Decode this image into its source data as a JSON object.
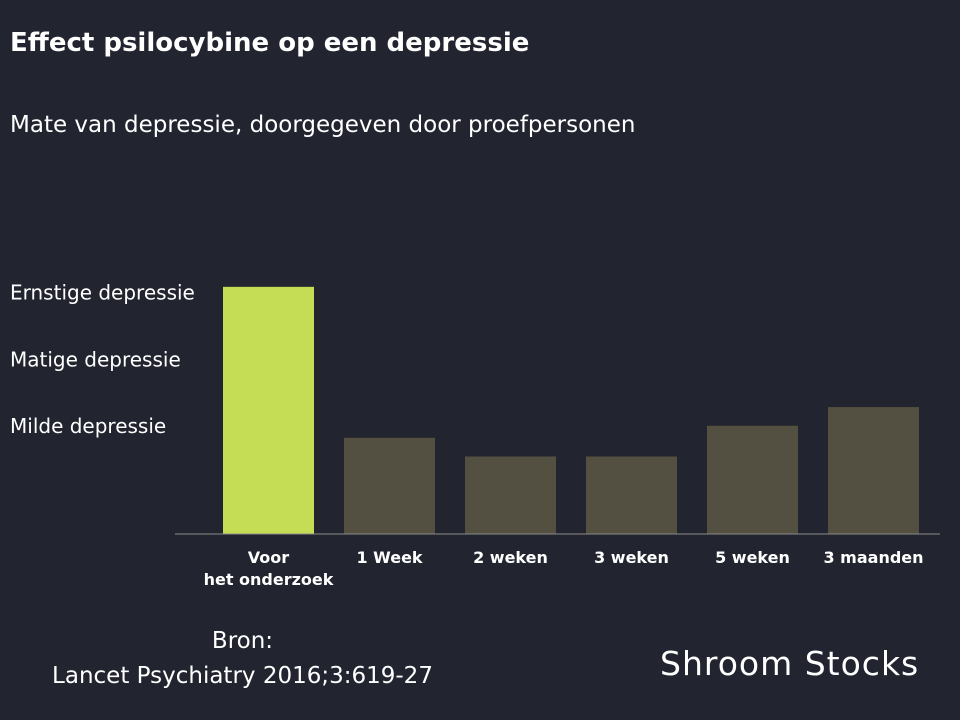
{
  "header": {
    "title": "Effect psilocybine op een depressie",
    "subtitle": "Mate van depressie, doorgegeven door proefpersonen"
  },
  "chart_data": {
    "type": "bar",
    "categories": [
      "Voor het onderzoek",
      "1 Week",
      "2 weken",
      "3 weken",
      "5 weken",
      "3 maanden"
    ],
    "category_lines": [
      [
        "Voor",
        "het onderzoek"
      ],
      [
        "1 Week"
      ],
      [
        "2 weken"
      ],
      [
        "3 weken"
      ],
      [
        "5 weken"
      ],
      [
        "3 maanden"
      ]
    ],
    "values": [
      18.5,
      7.2,
      5.8,
      5.8,
      8.1,
      9.5
    ],
    "ylim": [
      0,
      25
    ],
    "bands": [
      {
        "label": "Ernstige depressie",
        "lower": 15
      },
      {
        "label": "Matige depressie",
        "lower": 10
      },
      {
        "label": "Milde depressie",
        "lower": 5
      }
    ],
    "highlight_index": 0,
    "colors": {
      "highlight": "#c5dc55",
      "bar": "#535041",
      "band_line": "#c8c8c8",
      "axis": "#8a8a8a"
    },
    "title": "Effect psilocybine op een depressie",
    "xlabel": "",
    "ylabel": "",
    "grid": false,
    "legend": "none"
  },
  "footer": {
    "source_label": "Bron:",
    "source_text": "Lancet Psychiatry 2016;3:619-27",
    "brand": "Shroom Stocks"
  }
}
